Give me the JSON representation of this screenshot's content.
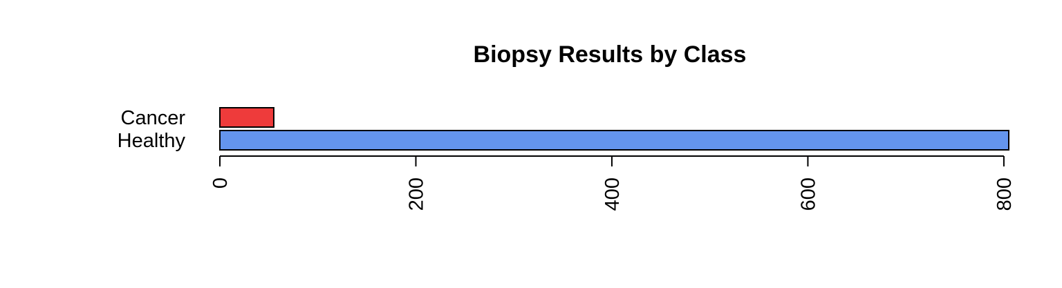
{
  "chart_data": {
    "type": "bar",
    "orientation": "horizontal",
    "title": "Biopsy Results by Class",
    "xlabel": "",
    "ylabel": "",
    "categories": [
      "Cancer",
      "Healthy"
    ],
    "values": [
      55,
      805
    ],
    "colors": [
      "#EE3B3B",
      "#6495ED"
    ],
    "xlim": [
      0,
      805
    ],
    "xticks": [
      0,
      200,
      400,
      600,
      800
    ],
    "tick_label_orientation": "vertical",
    "grid": false,
    "legend": "none"
  }
}
